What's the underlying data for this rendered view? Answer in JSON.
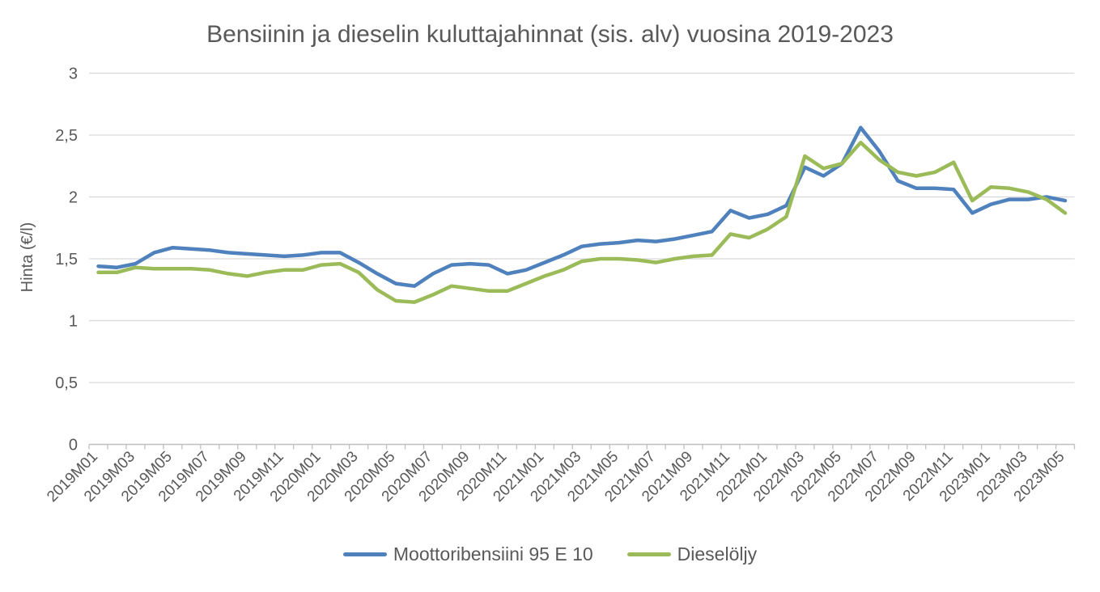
{
  "title": "Bensiinin ja dieselin kuluttajahinnat (sis. alv) vuosina 2019-2023",
  "colors": {
    "petrol_line": "#4F81BD",
    "diesel_line": "#9BBB59",
    "gridline": "#d9d9d9",
    "axis": "#bfbfbf",
    "text": "#595959"
  },
  "chart_data": {
    "type": "line",
    "title": "Bensiinin ja dieselin kuluttajahinnat (sis. alv) vuosina 2019-2023",
    "xlabel": "",
    "ylabel": "Hinta (€/l)",
    "ylim": [
      0,
      3
    ],
    "ytick_step": 0.5,
    "ytick_labels": [
      "0",
      "0,5",
      "1",
      "1,5",
      "2",
      "2,5",
      "3"
    ],
    "x_label_interval": 2,
    "x_label_rotation": -45,
    "grid": true,
    "legend_position": "bottom",
    "categories": [
      "2019M01",
      "2019M02",
      "2019M03",
      "2019M04",
      "2019M05",
      "2019M06",
      "2019M07",
      "2019M08",
      "2019M09",
      "2019M10",
      "2019M11",
      "2019M12",
      "2020M01",
      "2020M02",
      "2020M03",
      "2020M04",
      "2020M05",
      "2020M06",
      "2020M07",
      "2020M08",
      "2020M09",
      "2020M10",
      "2020M11",
      "2020M12",
      "2021M01",
      "2021M02",
      "2021M03",
      "2021M04",
      "2021M05",
      "2021M06",
      "2021M07",
      "2021M08",
      "2021M09",
      "2021M10",
      "2021M11",
      "2021M12",
      "2022M01",
      "2022M02",
      "2022M03",
      "2022M04",
      "2022M05",
      "2022M06",
      "2022M07",
      "2022M08",
      "2022M09",
      "2022M10",
      "2022M11",
      "2022M12",
      "2023M01",
      "2023M02",
      "2023M03",
      "2023M04",
      "2023M05"
    ],
    "series": [
      {
        "name": "Moottoribensiini 95 E 10",
        "color": "#4F81BD",
        "values": [
          1.44,
          1.43,
          1.46,
          1.55,
          1.59,
          1.58,
          1.57,
          1.55,
          1.54,
          1.53,
          1.52,
          1.53,
          1.55,
          1.55,
          1.47,
          1.38,
          1.3,
          1.28,
          1.38,
          1.45,
          1.46,
          1.45,
          1.38,
          1.41,
          1.47,
          1.53,
          1.6,
          1.62,
          1.63,
          1.65,
          1.64,
          1.66,
          1.69,
          1.72,
          1.89,
          1.83,
          1.86,
          1.93,
          2.24,
          2.17,
          2.27,
          2.56,
          2.37,
          2.13,
          2.07,
          2.07,
          2.06,
          1.87,
          1.94,
          1.98,
          1.98,
          2.0,
          1.97
        ]
      },
      {
        "name": "Dieselöljy",
        "color": "#9BBB59",
        "values": [
          1.39,
          1.39,
          1.43,
          1.42,
          1.42,
          1.42,
          1.41,
          1.38,
          1.36,
          1.39,
          1.41,
          1.41,
          1.45,
          1.46,
          1.39,
          1.25,
          1.16,
          1.15,
          1.21,
          1.28,
          1.26,
          1.24,
          1.24,
          1.3,
          1.36,
          1.41,
          1.48,
          1.5,
          1.5,
          1.49,
          1.47,
          1.5,
          1.52,
          1.53,
          1.7,
          1.67,
          1.74,
          1.84,
          2.33,
          2.23,
          2.27,
          2.44,
          2.3,
          2.2,
          2.17,
          2.2,
          2.28,
          1.97,
          2.08,
          2.07,
          2.04,
          1.98,
          1.87
        ]
      }
    ]
  }
}
